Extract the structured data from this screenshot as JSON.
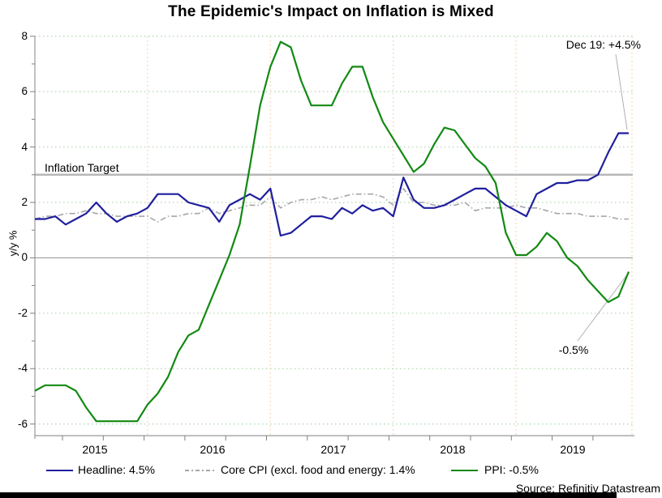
{
  "title": "The Epidemic's Impact on Inflation is Mixed",
  "yaxis": {
    "label": "y/y %",
    "ticks": [
      "8",
      "6",
      "4",
      "2",
      "0",
      "-2",
      "-4",
      "-6"
    ]
  },
  "xaxis": {
    "years": [
      "2015",
      "2016",
      "2017",
      "2018",
      "2019"
    ]
  },
  "inflation_target": {
    "label": "Inflation Target",
    "value": 3
  },
  "annotations": {
    "dec19": "Dec 19: +4.5%",
    "ppi_end": "-0.5%"
  },
  "legend": {
    "headline": "Headline: 4.5%",
    "core": "Core CPI (excl. food and energy: 1.4%",
    "ppi": "PPI: -0.5%"
  },
  "source": "Source: Refinitiv Datastream",
  "colors": {
    "headline": "#1f1f9e",
    "core": "#a6a6a6",
    "ppi": "#128912",
    "grid_h": "#aed6ae",
    "grid_v": "#f3cda6",
    "zero_line": "#909090",
    "target_line": "#b8b8b8",
    "axis": "#9a9a9a",
    "callout": "#b0b0b0"
  },
  "chart_data": {
    "type": "line",
    "title": "The Epidemic's Impact on Inflation is Mixed",
    "ylabel": "y/y %",
    "ylim": [
      -6.4,
      8
    ],
    "grid": "horizontal green dotted, vertical orange dotted at year starts",
    "legend_position": "bottom",
    "x_start": "2015-02",
    "x_end": "2019-12",
    "x_freq": "monthly",
    "ytick_values": [
      8,
      6,
      4,
      2,
      0,
      -2,
      -4,
      -6
    ],
    "year_gridline_indices": [
      11,
      23,
      35,
      47
    ],
    "reference_lines": [
      {
        "name": "inflation-target",
        "value": 3
      },
      {
        "name": "zero",
        "value": 0
      }
    ],
    "series": [
      {
        "name": "Headline: 4.5%",
        "color": "#1f1f9e",
        "style": "solid",
        "values": [
          1.4,
          1.4,
          1.5,
          1.2,
          1.4,
          1.6,
          2.0,
          1.6,
          1.3,
          1.5,
          1.6,
          1.8,
          2.3,
          2.3,
          2.3,
          2.0,
          1.9,
          1.8,
          1.3,
          1.9,
          2.1,
          2.3,
          2.1,
          2.5,
          0.8,
          0.9,
          1.2,
          1.5,
          1.5,
          1.4,
          1.8,
          1.6,
          1.9,
          1.7,
          1.8,
          1.5,
          2.9,
          2.1,
          1.8,
          1.8,
          1.9,
          2.1,
          2.3,
          2.5,
          2.5,
          2.2,
          1.9,
          1.7,
          1.5,
          2.3,
          2.5,
          2.7,
          2.7,
          2.8,
          2.8,
          3.0,
          3.8,
          4.5,
          4.5
        ]
      },
      {
        "name": "Core CPI (excl. food and energy: 1.4%",
        "color": "#a6a6a6",
        "style": "dashdot",
        "values": [
          1.4,
          1.5,
          1.5,
          1.6,
          1.6,
          1.7,
          1.6,
          1.6,
          1.5,
          1.5,
          1.5,
          1.5,
          1.3,
          1.5,
          1.5,
          1.6,
          1.6,
          1.8,
          1.6,
          1.7,
          1.8,
          1.9,
          1.9,
          2.2,
          1.8,
          2.0,
          2.1,
          2.1,
          2.2,
          2.1,
          2.2,
          2.3,
          2.3,
          2.3,
          2.2,
          1.9,
          2.5,
          2.0,
          2.0,
          1.9,
          1.9,
          1.9,
          2.0,
          1.7,
          1.8,
          1.8,
          1.8,
          1.9,
          1.8,
          1.8,
          1.7,
          1.6,
          1.6,
          1.6,
          1.5,
          1.5,
          1.5,
          1.4,
          1.4
        ]
      },
      {
        "name": "PPI: -0.5%",
        "color": "#128912",
        "style": "solid",
        "values": [
          -4.8,
          -4.6,
          -4.6,
          -4.6,
          -4.8,
          -5.4,
          -5.9,
          -5.9,
          -5.9,
          -5.9,
          -5.9,
          -5.3,
          -4.9,
          -4.3,
          -3.4,
          -2.8,
          -2.6,
          -1.7,
          -0.8,
          0.1,
          1.2,
          3.3,
          5.5,
          6.9,
          7.8,
          7.6,
          6.4,
          5.5,
          5.5,
          5.5,
          6.3,
          6.9,
          6.9,
          5.8,
          4.9,
          4.3,
          3.7,
          3.1,
          3.4,
          4.1,
          4.7,
          4.6,
          4.1,
          3.6,
          3.3,
          2.7,
          0.9,
          0.1,
          0.1,
          0.4,
          0.9,
          0.6,
          0.0,
          -0.3,
          -0.8,
          -1.2,
          -1.6,
          -1.4,
          -0.5
        ]
      }
    ]
  }
}
